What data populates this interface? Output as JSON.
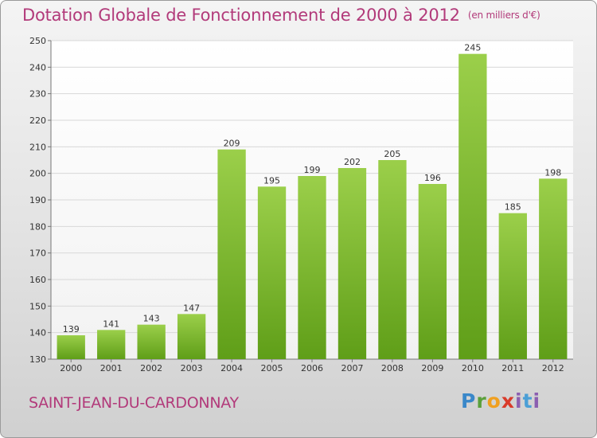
{
  "title": "Dotation Globale de Fonctionnement de 2000 à 2012",
  "unit_note": "(en milliers d'€)",
  "commune": "SAINT-JEAN-DU-CARDONNAY",
  "logo": {
    "letters": [
      "P",
      "r",
      "o",
      "x",
      "i",
      "t",
      "i"
    ],
    "colors": [
      "#3a88c9",
      "#5aa03a",
      "#f0a020",
      "#d93b2a",
      "#8b5fb0",
      "#4b9fd6",
      "#8b5fb0"
    ]
  },
  "chart_data": {
    "type": "bar",
    "title": "Dotation Globale de Fonctionnement de 2000 à 2012",
    "subtitle": "(en milliers d'€)",
    "xlabel": "",
    "ylabel": "",
    "categories": [
      "2000",
      "2001",
      "2002",
      "2003",
      "2004",
      "2005",
      "2006",
      "2007",
      "2008",
      "2009",
      "2010",
      "2011",
      "2012"
    ],
    "values": [
      139,
      141,
      143,
      147,
      209,
      195,
      199,
      202,
      205,
      196,
      245,
      185,
      198
    ],
    "ylim": [
      130,
      250
    ],
    "yticks": [
      130,
      140,
      150,
      160,
      170,
      180,
      190,
      200,
      210,
      220,
      230,
      240,
      250
    ],
    "grid": true,
    "bar_color_top": "#9bcf4a",
    "bar_color_bottom": "#5f9e18"
  }
}
